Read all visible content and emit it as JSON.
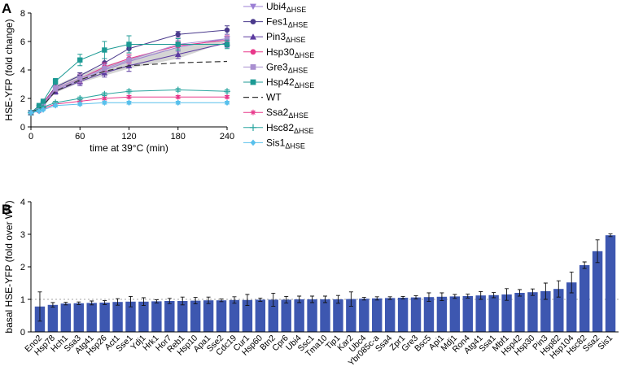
{
  "panel_a_label": "A",
  "panel_b_label": "B",
  "chart_data": [
    {
      "type": "line",
      "panel": "A",
      "xlabel": "time at 39°C (min)",
      "ylabel": "HSE-YFP (fold change)",
      "xlim": [
        0,
        240
      ],
      "ylim": [
        0,
        8
      ],
      "xticks": [
        0,
        60,
        120,
        180,
        240
      ],
      "yticks": [
        0,
        2,
        4,
        6,
        8
      ],
      "x": [
        0,
        10,
        15,
        30,
        60,
        90,
        120,
        180,
        240
      ],
      "band": {
        "lower": [
          1.0,
          1.3,
          1.5,
          2.4,
          3.1,
          3.6,
          4.1,
          4.8,
          6.0
        ],
        "upper": [
          1.0,
          1.4,
          1.7,
          2.9,
          3.7,
          4.3,
          4.8,
          5.6,
          6.1
        ]
      },
      "series": [
        {
          "name": "Ubi4",
          "sub": "ΔHSE",
          "color": "#9b7fd4",
          "marker": "triangle-down",
          "dash": false,
          "values": [
            1.0,
            1.35,
            1.6,
            2.6,
            3.3,
            4.0,
            4.6,
            5.6,
            6.2
          ],
          "err": [
            0.05,
            0.1,
            0.1,
            0.2,
            0.3,
            0.3,
            0.4,
            0.3,
            0.3
          ]
        },
        {
          "name": "Fes1",
          "sub": "ΔHSE",
          "color": "#4a3a8c",
          "marker": "circle",
          "dash": false,
          "values": [
            1.0,
            1.4,
            1.7,
            2.8,
            3.6,
            4.5,
            5.5,
            6.5,
            6.8
          ],
          "err": [
            0.05,
            0.1,
            0.1,
            0.2,
            0.2,
            0.3,
            0.3,
            0.2,
            0.3
          ]
        },
        {
          "name": "Pin3",
          "sub": "ΔHSE",
          "color": "#5b3aa0",
          "marker": "triangle-up",
          "dash": false,
          "values": [
            1.0,
            1.3,
            1.5,
            2.5,
            3.2,
            3.8,
            4.3,
            5.1,
            5.9
          ],
          "err": [
            0.05,
            0.1,
            0.1,
            0.2,
            0.3,
            0.3,
            0.4,
            0.3,
            0.3
          ]
        },
        {
          "name": "Hsp30",
          "sub": "ΔHSE",
          "color": "#e8388a",
          "marker": "circle",
          "dash": false,
          "values": [
            1.0,
            1.4,
            1.7,
            2.7,
            3.4,
            4.2,
            4.8,
            5.7,
            6.1
          ],
          "err": [
            0.05,
            0.1,
            0.1,
            0.2,
            0.3,
            0.3,
            0.3,
            0.3,
            0.3
          ]
        },
        {
          "name": "Gre3",
          "sub": "ΔHSE",
          "color": "#a98fd0",
          "marker": "square",
          "dash": false,
          "values": [
            1.0,
            1.4,
            1.6,
            2.7,
            3.4,
            4.1,
            4.7,
            5.8,
            6.2
          ],
          "err": [
            0.05,
            0.1,
            0.1,
            0.2,
            0.3,
            0.3,
            0.3,
            0.3,
            0.3
          ]
        },
        {
          "name": "Hsp42",
          "sub": "ΔHSE",
          "color": "#1c9a94",
          "marker": "square",
          "dash": false,
          "values": [
            1.0,
            1.5,
            1.8,
            3.2,
            4.7,
            5.4,
            5.8,
            5.8,
            5.8
          ],
          "err": [
            0.05,
            0.1,
            0.1,
            0.2,
            0.4,
            0.6,
            0.6,
            0.4,
            0.3
          ]
        },
        {
          "name": "WT",
          "sub": "",
          "color": "#333333",
          "marker": "none",
          "dash": true,
          "values": [
            1.0,
            1.3,
            1.5,
            2.5,
            3.3,
            3.9,
            4.3,
            4.5,
            4.6
          ],
          "err": []
        },
        {
          "name": "Ssa2",
          "sub": "ΔHSE",
          "color": "#e8388a",
          "marker": "star",
          "dash": false,
          "values": [
            1.0,
            1.1,
            1.3,
            1.6,
            1.8,
            2.0,
            2.1,
            2.1,
            2.1
          ],
          "err": [
            0.05,
            0.05,
            0.05,
            0.1,
            0.1,
            0.1,
            0.1,
            0.1,
            0.1
          ]
        },
        {
          "name": "Hsc82",
          "sub": "ΔHSE",
          "color": "#2ba6a0",
          "marker": "plus",
          "dash": false,
          "values": [
            1.0,
            1.2,
            1.4,
            1.7,
            2.0,
            2.3,
            2.5,
            2.6,
            2.5
          ],
          "err": [
            0.05,
            0.05,
            0.05,
            0.1,
            0.1,
            0.1,
            0.1,
            0.1,
            0.1
          ]
        },
        {
          "name": "Sis1",
          "sub": "ΔHSE",
          "color": "#58c0ec",
          "marker": "diamond",
          "dash": false,
          "values": [
            1.0,
            1.1,
            1.2,
            1.5,
            1.6,
            1.7,
            1.7,
            1.7,
            1.7
          ],
          "err": [
            0.05,
            0.05,
            0.05,
            0.1,
            0.1,
            0.1,
            0.1,
            0.1,
            0.1
          ]
        }
      ]
    },
    {
      "type": "bar",
      "panel": "B",
      "ylabel": "basal HSE-YFP (fold over WT)",
      "ylim": [
        0,
        4
      ],
      "yticks": [
        0,
        1,
        2,
        3,
        4
      ],
      "reference_line": 1,
      "bar_color": "#3d57b0",
      "categories": [
        "Eno2",
        "Hsp78",
        "Hch1",
        "Ssa3",
        "Atg41",
        "Hsp26",
        "Act1",
        "Sse1",
        "Ydj1",
        "Hrk1",
        "Hor7",
        "Reb1",
        "Hsp10",
        "Apa1",
        "Sse2",
        "Cdc19",
        "Cur1",
        "Hsp60",
        "Btn2",
        "Cpr6",
        "Ubi4",
        "Ssc1",
        "Tma10",
        "Tip1",
        "Kar2",
        "Ubc4",
        "Ybr085c-a",
        "Ssa4",
        "Zpr1",
        "Gre3",
        "Bsc5",
        "Api1",
        "Mdj1",
        "Ron4",
        "Atg41",
        "Ssa1",
        "Mbf1",
        "Hsp42",
        "Hsp30",
        "Pin3",
        "Hsp82",
        "Hsp104",
        "Hsc82",
        "Ssa2",
        "Sis1"
      ],
      "values": [
        0.78,
        0.83,
        0.87,
        0.88,
        0.89,
        0.9,
        0.92,
        0.93,
        0.93,
        0.94,
        0.95,
        0.95,
        0.96,
        0.97,
        0.97,
        0.98,
        0.98,
        0.99,
        0.99,
        0.99,
        1.0,
        1.0,
        1.0,
        1.0,
        1.01,
        1.02,
        1.03,
        1.04,
        1.05,
        1.06,
        1.07,
        1.08,
        1.09,
        1.1,
        1.12,
        1.13,
        1.15,
        1.2,
        1.22,
        1.25,
        1.32,
        1.52,
        2.05,
        2.48,
        2.97
      ],
      "errors": [
        0.45,
        0.07,
        0.04,
        0.04,
        0.06,
        0.06,
        0.1,
        0.16,
        0.12,
        0.05,
        0.08,
        0.12,
        0.1,
        0.1,
        0.04,
        0.1,
        0.17,
        0.05,
        0.2,
        0.1,
        0.1,
        0.1,
        0.1,
        0.12,
        0.22,
        0.04,
        0.05,
        0.04,
        0.04,
        0.05,
        0.13,
        0.12,
        0.06,
        0.06,
        0.12,
        0.08,
        0.18,
        0.1,
        0.1,
        0.25,
        0.25,
        0.32,
        0.1,
        0.35,
        0.04
      ]
    }
  ]
}
